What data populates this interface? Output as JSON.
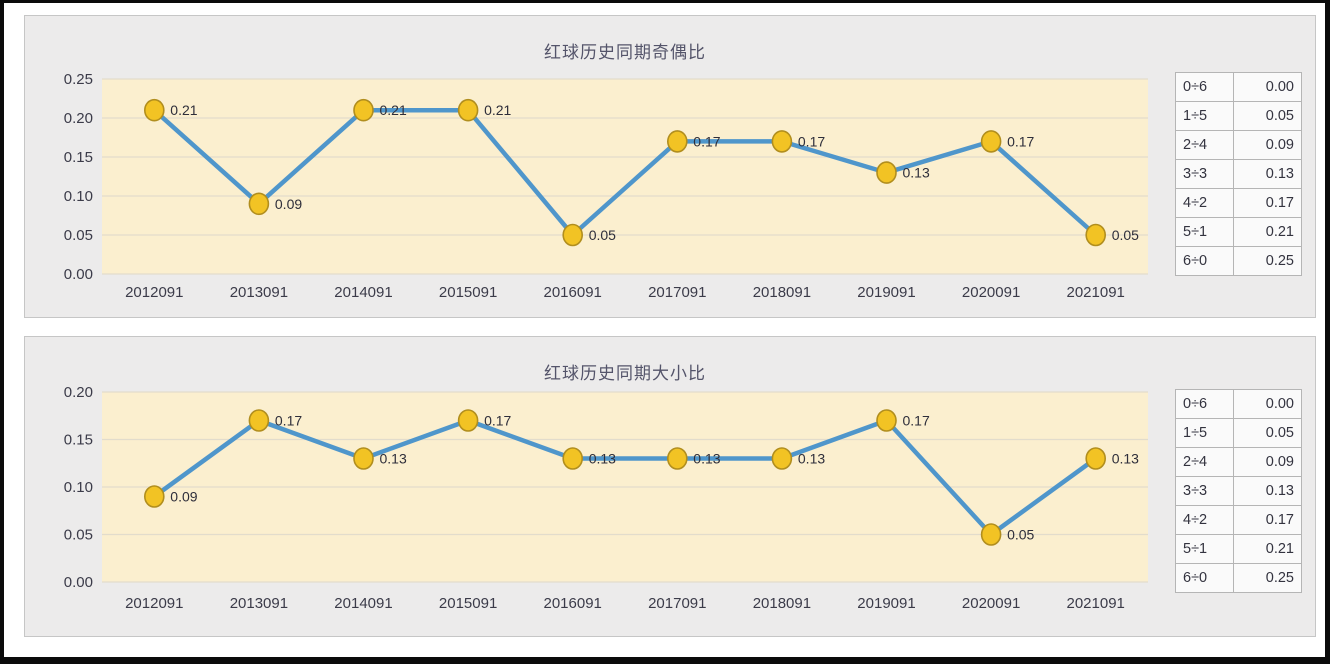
{
  "colors": {
    "plot_bg": "#FBEFCF",
    "grid": "#E2DCCC",
    "line": "#4F96CB",
    "marker_fill": "#F2C324",
    "marker_stroke": "#B18E1E",
    "card_bg": "#ECEBEB",
    "tick_text": "#3B3B49",
    "title_text": "#54546A"
  },
  "chart_data": [
    {
      "type": "line",
      "title": "红球历史同期奇偶比",
      "categories": [
        "2012091",
        "2013091",
        "2014091",
        "2015091",
        "2016091",
        "2017091",
        "2018091",
        "2019091",
        "2020091",
        "2021091"
      ],
      "values": [
        0.21,
        0.09,
        0.21,
        0.21,
        0.05,
        0.17,
        0.17,
        0.13,
        0.17,
        0.05
      ],
      "ylim": [
        0,
        0.25
      ],
      "yticks": [
        0.0,
        0.05,
        0.1,
        0.15,
        0.2,
        0.25
      ],
      "grid": true,
      "data_labels": true,
      "legend": "none",
      "side_table": {
        "rows": [
          [
            "0÷6",
            "0.00"
          ],
          [
            "1÷5",
            "0.05"
          ],
          [
            "2÷4",
            "0.09"
          ],
          [
            "3÷3",
            "0.13"
          ],
          [
            "4÷2",
            "0.17"
          ],
          [
            "5÷1",
            "0.21"
          ],
          [
            "6÷0",
            "0.25"
          ]
        ]
      }
    },
    {
      "type": "line",
      "title": "红球历史同期大小比",
      "categories": [
        "2012091",
        "2013091",
        "2014091",
        "2015091",
        "2016091",
        "2017091",
        "2018091",
        "2019091",
        "2020091",
        "2021091"
      ],
      "values": [
        0.09,
        0.17,
        0.13,
        0.17,
        0.13,
        0.13,
        0.13,
        0.17,
        0.05,
        0.13
      ],
      "ylim": [
        0,
        0.2
      ],
      "yticks": [
        0.0,
        0.05,
        0.1,
        0.15,
        0.2
      ],
      "grid": true,
      "data_labels": true,
      "legend": "none",
      "side_table": {
        "rows": [
          [
            "0÷6",
            "0.00"
          ],
          [
            "1÷5",
            "0.05"
          ],
          [
            "2÷4",
            "0.09"
          ],
          [
            "3÷3",
            "0.13"
          ],
          [
            "4÷2",
            "0.17"
          ],
          [
            "5÷1",
            "0.21"
          ],
          [
            "6÷0",
            "0.25"
          ]
        ]
      }
    }
  ]
}
